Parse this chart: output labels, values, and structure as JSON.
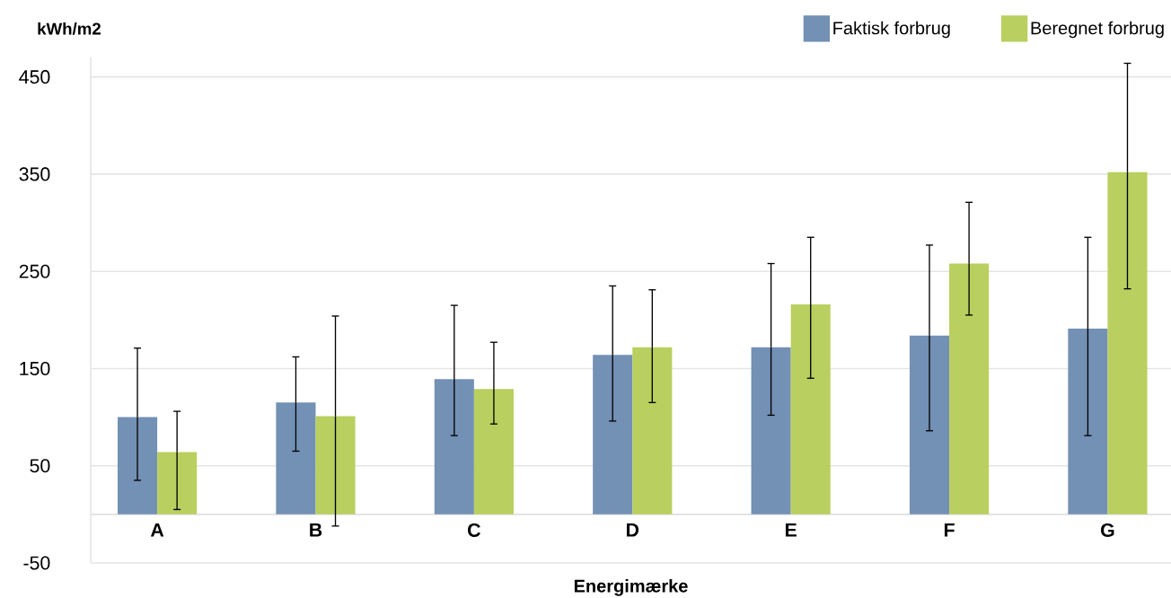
{
  "chart_data": {
    "type": "bar",
    "ylabel": "kWh/m2",
    "xlabel": "Energimærke",
    "categories": [
      "A",
      "B",
      "C",
      "D",
      "E",
      "F",
      "G"
    ],
    "series": [
      {
        "name": "Faktisk forbrug",
        "color": "#7390b5",
        "values": [
          100,
          115,
          139,
          164,
          172,
          184,
          191
        ],
        "errors": [
          [
            35,
            171
          ],
          [
            65,
            162
          ],
          [
            81,
            215
          ],
          [
            96,
            235
          ],
          [
            102,
            258
          ],
          [
            86,
            277
          ],
          [
            81,
            285
          ]
        ]
      },
      {
        "name": "Beregnet forbrug",
        "color": "#b9cf5f",
        "values": [
          64,
          101,
          129,
          172,
          216,
          258,
          352
        ],
        "errors": [
          [
            5,
            106
          ],
          [
            -12,
            204
          ],
          [
            93,
            177
          ],
          [
            115,
            231
          ],
          [
            140,
            285
          ],
          [
            205,
            321
          ],
          [
            232,
            464
          ]
        ]
      }
    ],
    "ylim": [
      -50,
      470
    ],
    "yticks": [
      -50,
      50,
      150,
      250,
      350,
      450
    ],
    "grid": "y",
    "legend": "top right"
  }
}
